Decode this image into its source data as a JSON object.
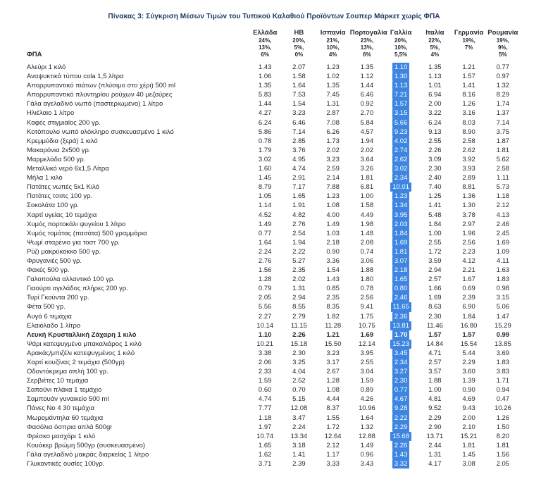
{
  "title": "Πίνακας 3: Σύγκριση Μέσων Τιμών του Τυπικού Καλαθιού Προϊόντων Σουπερ Μάρκετ χωρίς ΦΠΑ",
  "vat_row_label": "ΦΠΑ",
  "columns": [
    {
      "name": "Ελλάδα",
      "vat": [
        "24%,",
        "13%,",
        "6%"
      ]
    },
    {
      "name": "ΗΒ",
      "vat": [
        "20%,",
        "5%,",
        "0%"
      ]
    },
    {
      "name": "Ισπανία",
      "vat": [
        "21%,",
        "10%,",
        "4%"
      ]
    },
    {
      "name": "Πορτογαλία",
      "vat": [
        "23%,",
        "13%,",
        "6%"
      ]
    },
    {
      "name": "Γαλλία",
      "vat": [
        "20%,",
        "10%,",
        "5,5%"
      ]
    },
    {
      "name": "Ιταλία",
      "vat": [
        "22%,",
        "5%,",
        "4%"
      ]
    },
    {
      "name": "Γερμανία",
      "vat": [
        "19%,",
        "7%"
      ]
    },
    {
      "name": "Ρουμανία",
      "vat": [
        "19%,",
        "9%,",
        "5%"
      ]
    }
  ],
  "highlight": {
    "column_name": "Γαλλία",
    "column_index": 4,
    "background": "#3d85e0",
    "text_color": "#ffffff"
  },
  "rows": [
    {
      "name": "Αλεύρι 1 κιλό",
      "values": [
        "1.43",
        "2.07",
        "1.23",
        "1.35",
        "1.10",
        "1.35",
        "1.21",
        "0.77"
      ]
    },
    {
      "name": "Αναψυκτικά τύπου cola 1,5 λίτρα",
      "values": [
        "1.06",
        "1.58",
        "1.02",
        "1.12",
        "1.30",
        "1.13",
        "1.57",
        "0.97"
      ]
    },
    {
      "name": "Απορρυπαντικό πιάτων (πλύσιμο στο χέρι) 500 ml",
      "values": [
        "1.35",
        "1.64",
        "1.35",
        "1.44",
        "1.13",
        "1.01",
        "1.41",
        "1.32"
      ]
    },
    {
      "name": "Απορρυπαντικό πλυντηρίου ρούχων 40 μεζούρες",
      "values": [
        "5.83",
        "7.53",
        "7.45",
        "6.46",
        "7.21",
        "6.94",
        "8.16",
        "8.29"
      ]
    },
    {
      "name": "Γάλα αγελαδινό νωπό (παστεριωμένο) 1 λίτρο",
      "values": [
        "1.44",
        "1.54",
        "1.31",
        "0.92",
        "1.57",
        "2.00",
        "1.26",
        "1.74"
      ]
    },
    {
      "name": "Ηλιέλαιο 1 λίτρο",
      "values": [
        "4.27",
        "3.23",
        "2.87",
        "2.70",
        "3.15",
        "3.22",
        "3.16",
        "1.37"
      ]
    },
    {
      "name": "Καφές στιγμιαίος 200 γρ.",
      "values": [
        "6.24",
        "6.46",
        "7.08",
        "5.84",
        "5.66",
        "6.24",
        "8.03",
        "7.14"
      ]
    },
    {
      "name": "Κοτόπουλο νωπό ολόκληρο συσκευασμένο 1 κιλό",
      "values": [
        "5.86",
        "7.14",
        "6.26",
        "4.57",
        "9.23",
        "9.13",
        "8.90",
        "3.75"
      ]
    },
    {
      "name": "Κρεμμύδια (ξερά) 1 κιλό",
      "values": [
        "0.78",
        "2.85",
        "1.73",
        "1.94",
        "4.02",
        "2.55",
        "2.58",
        "1.87"
      ]
    },
    {
      "name": "Μακαρόνια 2x500 γρ.",
      "values": [
        "1.79",
        "3.76",
        "2.02",
        "2.02",
        "2.74",
        "2.26",
        "2.62",
        "1.81"
      ]
    },
    {
      "name": "Μαρμελάδα 500 γρ.",
      "values": [
        "3.02",
        "4.95",
        "3.23",
        "3.64",
        "2.62",
        "3.09",
        "3.92",
        "5.62"
      ]
    },
    {
      "name": "Μεταλλικό νερό 6x1,5 Λίτρα",
      "values": [
        "1.60",
        "4.74",
        "2.59",
        "3.26",
        "3.02",
        "2.30",
        "3.93",
        "2.58"
      ]
    },
    {
      "name": "Μήλα 1 κιλό",
      "values": [
        "1.45",
        "2.91",
        "2.14",
        "1.81",
        "2.34",
        "2.40",
        "2.89",
        "1.11"
      ]
    },
    {
      "name": "Πατάτες νωπές 5x1 Κιλό",
      "values": [
        "8.79",
        "7.17",
        "7.88",
        "6.81",
        "10.01",
        "7.40",
        "8.81",
        "5.73"
      ]
    },
    {
      "name": "Πατάτες τσιπς 100 γρ.",
      "values": [
        "1.05",
        "1.65",
        "1.23",
        "1.00",
        "1.23",
        "1.25",
        "1.36",
        "1.18"
      ]
    },
    {
      "name": "Σοκολάτα 100 γρ.",
      "values": [
        "1.14",
        "1.91",
        "1.08",
        "1.58",
        "1.34",
        "1.41",
        "1.30",
        "2.12"
      ]
    },
    {
      "name": "Χαρτί υγείας 10 τεμάχια",
      "values": [
        "4.52",
        "4.82",
        "4.00",
        "4.49",
        "3.95",
        "5.48",
        "3.78",
        "4.13"
      ]
    },
    {
      "name": "Χυμός πορτοκάλι ψυγείου 1 λίτρο",
      "values": [
        "1.49",
        "2.76",
        "1.49",
        "1.98",
        "2.03",
        "1.84",
        "2.97",
        "2.46"
      ]
    },
    {
      "name": "Χυμός τομάτας (πασάτα) 500 γραμμάρια",
      "values": [
        "0.77",
        "2.54",
        "1.03",
        "1.48",
        "1.84",
        "1.00",
        "1.96",
        "2.45"
      ]
    },
    {
      "name": "Ψωμί σταρένιο για τοστ 700 γρ.",
      "values": [
        "1.64",
        "1.94",
        "2.18",
        "2.08",
        "1.69",
        "2.55",
        "2.56",
        "1.69"
      ]
    },
    {
      "name": "Ρύζι μακρύκοκκο 500 γρ.",
      "values": [
        "2.24",
        "2.22",
        "0.90",
        "0.74",
        "1.81",
        "1.72",
        "2.23",
        "1.09"
      ]
    },
    {
      "name": "Φρυγανιές 500 γρ.",
      "values": [
        "2.76",
        "5.27",
        "3.36",
        "3.06",
        "3.07",
        "3.59",
        "4.12",
        "4.11"
      ]
    },
    {
      "name": "Φακές 500 γρ.",
      "values": [
        "1.56",
        "2.35",
        "1.54",
        "1.88",
        "2.18",
        "2.94",
        "2.21",
        "1.63"
      ]
    },
    {
      "name": "Γαλοπούλα αλλαντικό 100 γρ.",
      "values": [
        "1.28",
        "2.02",
        "1.43",
        "1.80",
        "1.65",
        "2.57",
        "1.67",
        "1.83"
      ]
    },
    {
      "name": "Γιαούρτι αγελάδος πλήρες 200 γρ.",
      "values": [
        "0.79",
        "1.31",
        "0.85",
        "0.78",
        "0.80",
        "1.66",
        "0.69",
        "0.98"
      ]
    },
    {
      "name": "Τυρί Γκούντα 200 γρ.",
      "values": [
        "2.05",
        "2.94",
        "2.35",
        "2.56",
        "2.46",
        "1.69",
        "2.39",
        "3.15"
      ]
    },
    {
      "name": "Φέτα 500 γρ.",
      "values": [
        "5.56",
        "8.55",
        "8.35",
        "9.41",
        "11.65",
        "8.63",
        "6.90",
        "5.06"
      ]
    },
    {
      "name": "Αυγά 6 τεμάχια",
      "values": [
        "2.27",
        "2.79",
        "1.82",
        "1.75",
        "2.36",
        "2.30",
        "1.84",
        "1.47"
      ]
    },
    {
      "name": "Ελαιόλαδο 1 λίτρο",
      "values": [
        "10.14",
        "11.15",
        "11.28",
        "10.75",
        "13.81",
        "11.46",
        "16.80",
        "15.29"
      ]
    },
    {
      "name": "Λευκή Κρυσταλλική Ζάχαρη 1 κιλό",
      "bold": true,
      "values": [
        "1.10",
        "2.26",
        "1.21",
        "1.69",
        "1.70",
        "1.57",
        "1.57",
        "0.99"
      ]
    },
    {
      "name": "Ψάρι κατεψυγμένο μπακαλιάρος 1 κιλό",
      "values": [
        "10.21",
        "15.18",
        "15.50",
        "12.14",
        "15.23",
        "14.84",
        "15.54",
        "13.85"
      ]
    },
    {
      "name": "Αρακάς/μπιζέλι κατεψυγμένος 1 κιλό",
      "values": [
        "3.38",
        "2.30",
        "3.23",
        "3.95",
        "3.45",
        "4.71",
        "5.44",
        "3.69"
      ]
    },
    {
      "name": "Χαρτί κουζίνας 2 τεμάχια (500γρ)",
      "values": [
        "2.06",
        "3.25",
        "3.17",
        "2.55",
        "2.34",
        "2.57",
        "2.29",
        "1.83"
      ]
    },
    {
      "name": "Οδοντόκρεμα απλή 100 γρ.",
      "values": [
        "2.33",
        "4.04",
        "2.67",
        "3.04",
        "3.27",
        "3.57",
        "3.60",
        "3.83"
      ]
    },
    {
      "name": "Σερβιέτες 10 τεμάχια",
      "values": [
        "1.59",
        "2.52",
        "1.28",
        "1.59",
        "2.30",
        "1.88",
        "1.39",
        "1.71"
      ]
    },
    {
      "name": "Σαπούνι πλάκα 1 τεμάχιο",
      "values": [
        "0.60",
        "0.70",
        "1.08",
        "0.89",
        "0.77",
        "1.00",
        "0.90",
        "0.94"
      ]
    },
    {
      "name": "Σαμπουάν γυναικείο 500 ml",
      "values": [
        "4.74",
        "5.15",
        "4.44",
        "4.26",
        "4.67",
        "4.81",
        "4.69",
        "0.47"
      ]
    },
    {
      "name": "Πάνες Νο 4 30 τεμάχια",
      "values": [
        "7.77",
        "12.08",
        "8.37",
        "10.96",
        "9.28",
        "9.52",
        "9.43",
        "10.26"
      ]
    },
    {
      "name": "Μωρομάντηλα 60 τεμάχια",
      "values": [
        "1.18",
        "3.47",
        "1.55",
        "1.64",
        "2.22",
        "2.29",
        "2.00",
        "1.26"
      ]
    },
    {
      "name": "Φασόλια όσπρια απλά 500gr",
      "values": [
        "1.97",
        "2.24",
        "1.72",
        "1.32",
        "2.29",
        "2.90",
        "2.10",
        "1.50"
      ]
    },
    {
      "name": "Φρέσκο μοσχάρι 1 κιλό",
      "values": [
        "10.74",
        "13.34",
        "12.64",
        "12.88",
        "15.68",
        "13.71",
        "15.21",
        "8.20"
      ]
    },
    {
      "name": "Κουάκερ βρώμη 500γρ (συσκευασμένο)",
      "values": [
        "1.65",
        "3.18",
        "2.12",
        "1.49",
        "2.26",
        "2.44",
        "1.81",
        "1.81"
      ]
    },
    {
      "name": "Γάλα αγελαδινό μακράς διαρκείας 1 λίτρο",
      "values": [
        "1.62",
        "1.41",
        "1.17",
        "0.96",
        "1.43",
        "1.31",
        "1.45",
        "1.56"
      ]
    },
    {
      "name": "Γλυκαντικές ουσίες 100γρ.",
      "values": [
        "3.71",
        "2.39",
        "3.33",
        "3.43",
        "3.32",
        "4.17",
        "3.08",
        "2.05"
      ]
    }
  ]
}
